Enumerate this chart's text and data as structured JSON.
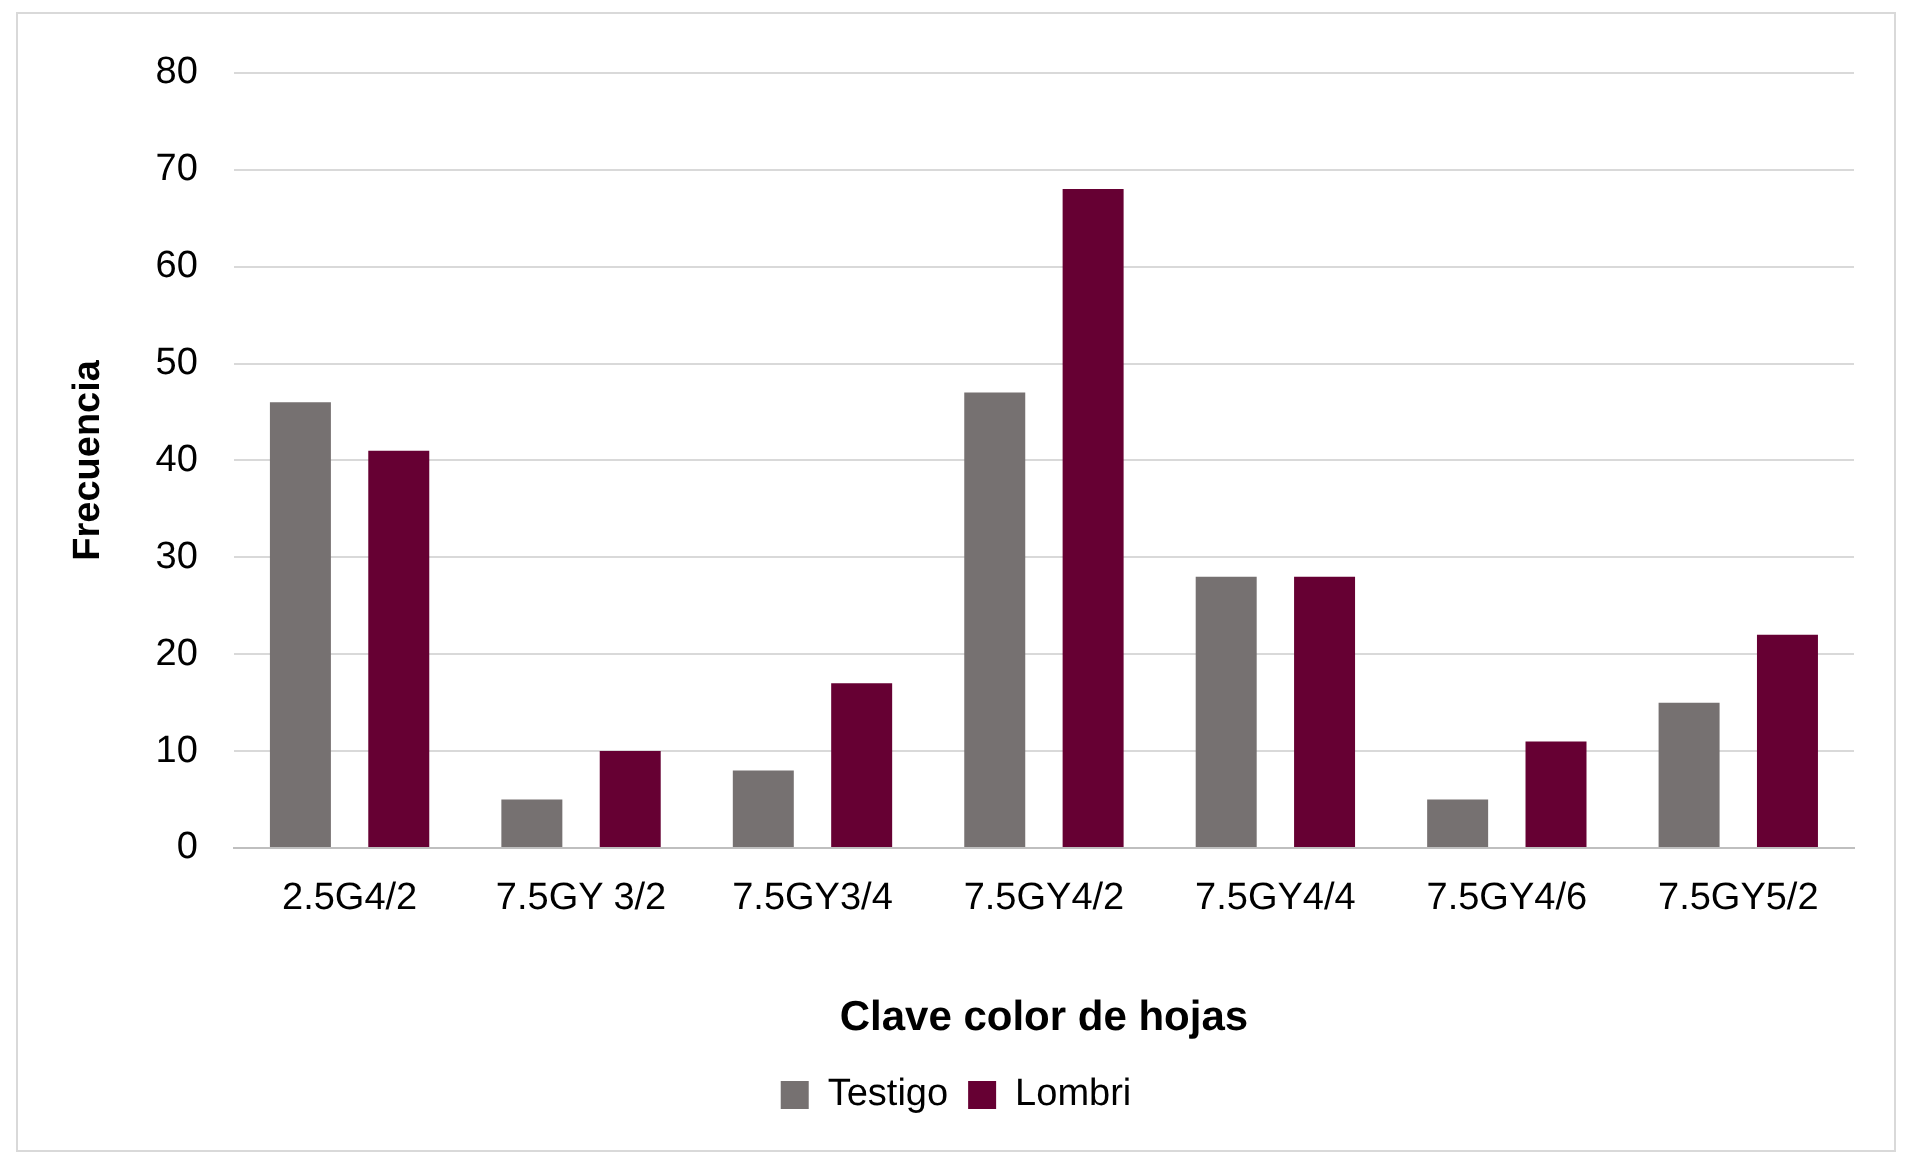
{
  "chart_data": {
    "type": "bar",
    "xlabel": "Clave color de hojas",
    "ylabel": "Frecuencia",
    "categories": [
      "2.5G4/2",
      "7.5GY 3/2",
      "7.5GY3/4",
      "7.5GY4/2",
      "7.5GY4/4",
      "7.5GY4/6",
      "7.5GY5/2"
    ],
    "series": [
      {
        "name": "Testigo",
        "color": "#767171",
        "values": [
          46,
          5,
          8,
          47,
          28,
          5,
          15
        ]
      },
      {
        "name": "Lombri",
        "color": "#660033",
        "values": [
          41,
          10,
          17,
          68,
          28,
          11,
          22
        ]
      }
    ],
    "ylim": [
      0,
      80
    ],
    "yticks": [
      0,
      10,
      20,
      30,
      40,
      50,
      60,
      70,
      80
    ],
    "grid": "y",
    "legend": "bottom"
  }
}
